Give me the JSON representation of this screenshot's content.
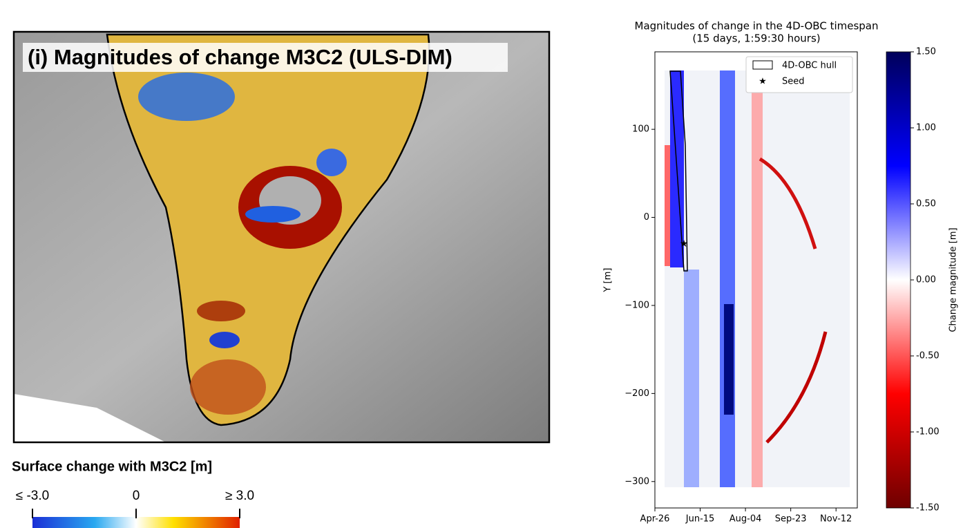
{
  "map_panel": {
    "title": "(i) Magnitudes of change M3C2 (ULS-DIM)",
    "colorbar": {
      "label": "Surface change with M3C2 [m]",
      "range": [
        -3,
        3
      ],
      "ticks": [
        {
          "value": -3,
          "label": "≤ -3.0"
        },
        0,
        {
          "value": 3,
          "label": "≥ 3.0"
        }
      ]
    }
  },
  "chart_data": {
    "type": "heatmap",
    "title": "Magnitudes of change in the 4D-OBC timespan",
    "subtitle": "(15 days, 1:59:30 hours)",
    "y_label": "Y [m]",
    "categories": [
      "Apr-26",
      "Jun-15",
      "Aug-04",
      "Sep-23",
      "Nov-12"
    ],
    "ylim": [
      188,
      -330
    ],
    "yticks": [
      100,
      0,
      {
        "value": -100,
        "label": "−100"
      },
      {
        "value": -200,
        "label": "−200"
      },
      {
        "value": -300,
        "label": "−300"
      }
    ],
    "legend": [
      "4D-OBC hull",
      "Seed"
    ],
    "colorbar": {
      "label": "Change magnitude [m]",
      "clim": [
        -1.5,
        1.5
      ],
      "ticks": [
        {
          "value": 1.5,
          "label": "1.50"
        },
        {
          "value": 1,
          "label": "1.00"
        },
        {
          "value": 0.5,
          "label": "0.50"
        },
        {
          "value": 0,
          "label": "0.00"
        },
        {
          "value": -0.5,
          "label": "-0.50"
        },
        {
          "value": -1,
          "label": "-1.00"
        },
        {
          "value": -1.5,
          "label": "-1.50"
        }
      ]
    }
  }
}
